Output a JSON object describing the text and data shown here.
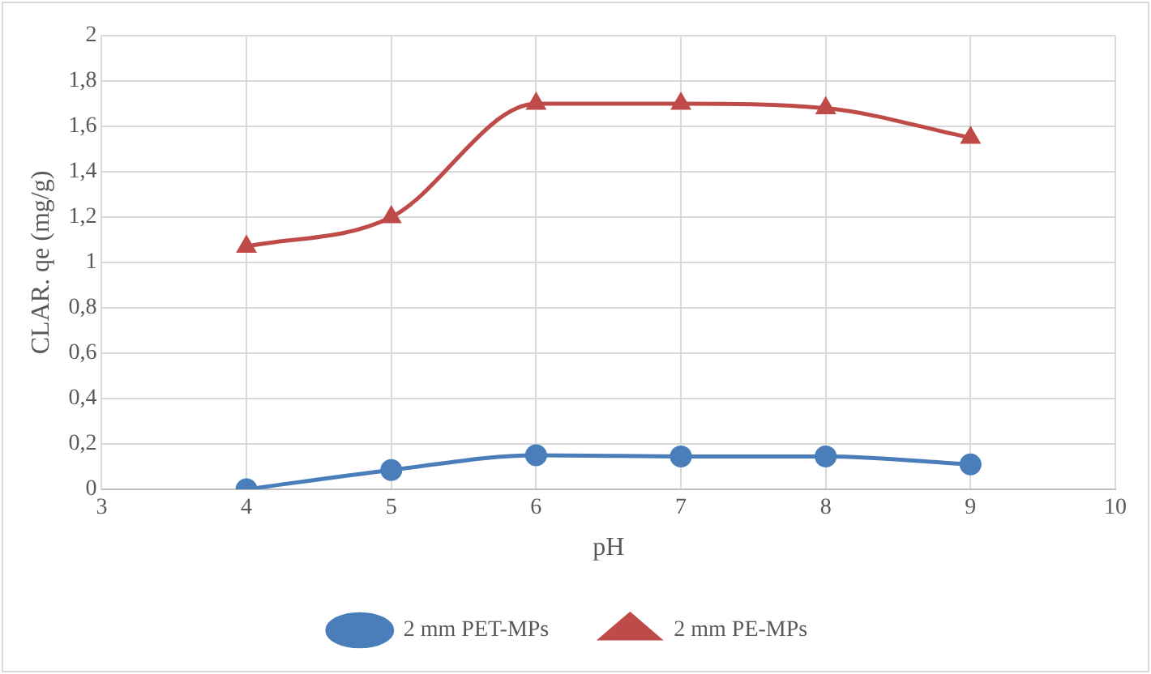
{
  "chart_data": {
    "type": "line",
    "xlabel": "pH",
    "ylabel": "CLAR. qe (mg/g)",
    "x": [
      4,
      5,
      6,
      7,
      8,
      9
    ],
    "series": [
      {
        "name": "2 mm PET-MPs",
        "color": "#4a7ebb",
        "marker": "circle",
        "values": [
          0,
          0.085,
          0.15,
          0.145,
          0.145,
          0.11
        ]
      },
      {
        "name": "2 mm PE-MPs",
        "color": "#be4b48",
        "marker": "triangle",
        "values": [
          1.07,
          1.2,
          1.7,
          1.7,
          1.68,
          1.55
        ]
      }
    ],
    "xlim": [
      3,
      10
    ],
    "xticks": [
      3,
      4,
      5,
      6,
      7,
      8,
      9,
      10
    ],
    "ylim": [
      0,
      2
    ],
    "yticks": [
      0,
      {
        "value": 0.2,
        "label": "0,2"
      },
      {
        "value": 0.4,
        "label": "0,4"
      },
      {
        "value": 0.6,
        "label": "0,6"
      },
      {
        "value": 0.8,
        "label": "0,8"
      },
      1,
      {
        "value": 1.2,
        "label": "1,2"
      },
      {
        "value": 1.4,
        "label": "1,4"
      },
      {
        "value": 1.6,
        "label": "1,6"
      },
      {
        "value": 1.8,
        "label": "1,8"
      },
      2
    ],
    "grid": true,
    "legend": "bottom",
    "line_style": "solid"
  }
}
